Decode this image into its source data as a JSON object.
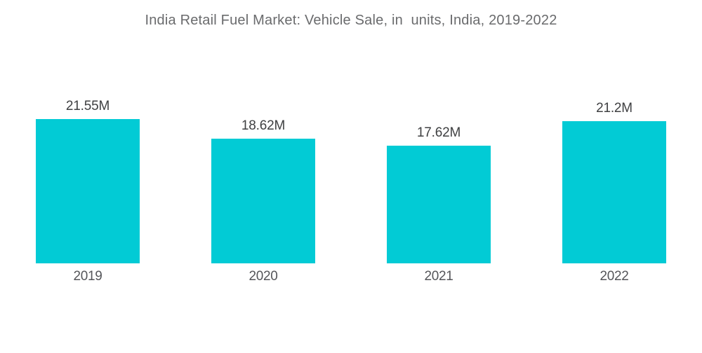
{
  "title": "India Retail Fuel Market: Vehicle Sale, in  units, India, 2019-2022",
  "chart_data": {
    "type": "bar",
    "title": "India Retail Fuel Market: Vehicle Sale, in  units, India, 2019-2022",
    "categories": [
      "2019",
      "2020",
      "2021",
      "2022"
    ],
    "values": [
      21.55,
      18.62,
      17.62,
      21.2
    ],
    "value_labels": [
      "21.55M",
      "18.62M",
      "17.62M",
      "21.2M"
    ],
    "unit": "M units",
    "xlabel": "",
    "ylabel": "",
    "ylim": [
      0,
      21.55
    ],
    "grid": false,
    "legend": "none",
    "bar_color": "#02cbd5"
  },
  "colors": {
    "bar": "#02cbd5",
    "title_text": "#6a6b6d",
    "value_text": "#3f4042",
    "year_text": "#55565a",
    "background": "#ffffff"
  }
}
